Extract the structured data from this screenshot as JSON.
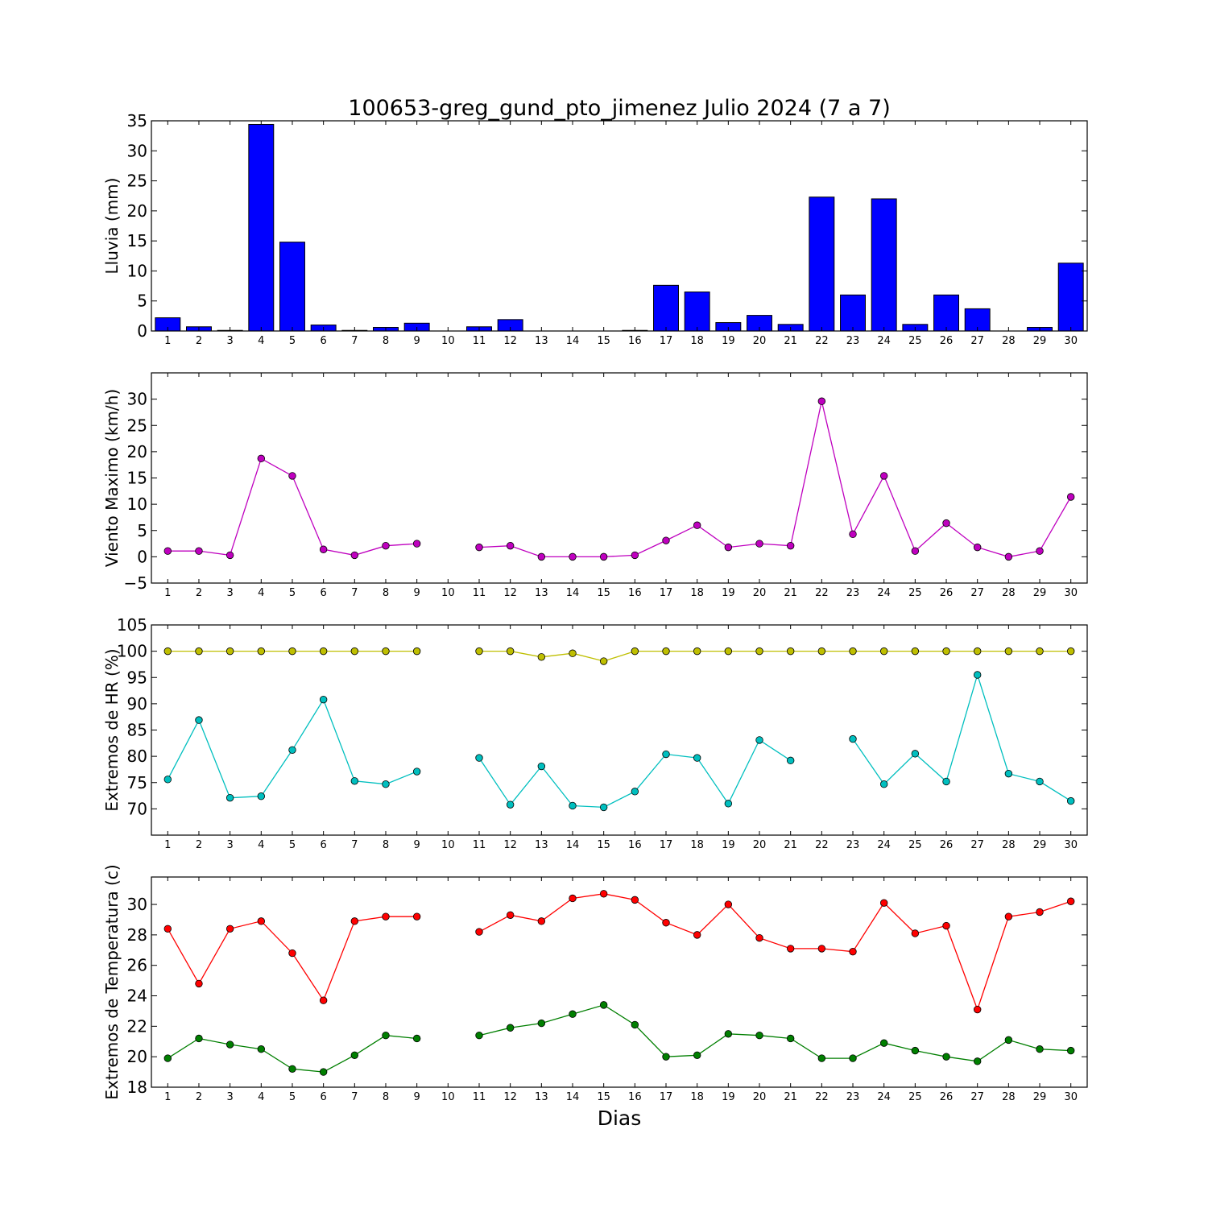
{
  "figure": {
    "title": "100653-greg_gund_pto_jimenez Julio 2024  (7 a 7)",
    "xlabel": "Dias"
  },
  "chart_data": [
    {
      "type": "bar",
      "ylabel": "Lluvia (mm)",
      "ylim": [
        0,
        35
      ],
      "yticks": [
        0,
        5,
        10,
        15,
        20,
        25,
        30,
        35
      ],
      "categories": [
        "1",
        "2",
        "3",
        "4",
        "5",
        "6",
        "7",
        "8",
        "9",
        "10",
        "11",
        "12",
        "13",
        "14",
        "15",
        "16",
        "17",
        "18",
        "19",
        "20",
        "21",
        "22",
        "23",
        "24",
        "25",
        "26",
        "27",
        "28",
        "29",
        "30"
      ],
      "series": [
        {
          "color": "#0000ff",
          "values": [
            2.2,
            0.7,
            0.1,
            34.4,
            14.8,
            1.0,
            0.1,
            0.6,
            1.3,
            null,
            0.7,
            1.9,
            0.0,
            0.0,
            0.0,
            0.1,
            7.6,
            6.5,
            1.4,
            2.6,
            1.1,
            22.3,
            6.0,
            22.0,
            1.1,
            6.0,
            3.7,
            0.0,
            0.6,
            11.3
          ]
        }
      ]
    },
    {
      "type": "line",
      "ylabel": "Viento Maximo (km/h)",
      "ylim": [
        -5,
        35
      ],
      "yticks": [
        -5,
        0,
        5,
        10,
        15,
        20,
        25,
        30
      ],
      "categories": [
        "1",
        "2",
        "3",
        "4",
        "5",
        "6",
        "7",
        "8",
        "9",
        "10",
        "11",
        "12",
        "13",
        "14",
        "15",
        "16",
        "17",
        "18",
        "19",
        "20",
        "21",
        "22",
        "23",
        "24",
        "25",
        "26",
        "27",
        "28",
        "29",
        "30"
      ],
      "series": [
        {
          "color": "#bf00bf",
          "values": [
            1.1,
            1.1,
            0.3,
            18.7,
            15.4,
            1.4,
            0.3,
            2.1,
            2.5,
            null,
            1.8,
            2.1,
            0.0,
            0.0,
            0.0,
            0.3,
            3.1,
            6.0,
            1.8,
            2.5,
            2.1,
            29.6,
            4.3,
            15.4,
            1.1,
            6.4,
            1.8,
            0.0,
            1.1,
            11.4
          ]
        }
      ]
    },
    {
      "type": "line",
      "ylabel": "Extremos de HR (%)",
      "ylim": [
        65,
        105
      ],
      "yticks": [
        70,
        75,
        80,
        85,
        90,
        95,
        100,
        105
      ],
      "categories": [
        "1",
        "2",
        "3",
        "4",
        "5",
        "6",
        "7",
        "8",
        "9",
        "10",
        "11",
        "12",
        "13",
        "14",
        "15",
        "16",
        "17",
        "18",
        "19",
        "20",
        "21",
        "22",
        "23",
        "24",
        "25",
        "26",
        "27",
        "28",
        "29",
        "30"
      ],
      "series": [
        {
          "color": "#bfbf00",
          "values": [
            100,
            100,
            100,
            100,
            100,
            100,
            100,
            100,
            100,
            null,
            100,
            100,
            98.9,
            99.6,
            98.1,
            100,
            100,
            100,
            100,
            100,
            100,
            100,
            100,
            100,
            100,
            100,
            100,
            100,
            100,
            100
          ]
        },
        {
          "color": "#00bfbf",
          "values": [
            75.6,
            86.9,
            72.1,
            72.4,
            81.2,
            90.8,
            75.3,
            74.7,
            77.1,
            null,
            79.7,
            70.8,
            78.1,
            70.6,
            70.3,
            73.3,
            80.4,
            79.7,
            71.0,
            83.1,
            79.2,
            null,
            83.3,
            74.7,
            80.5,
            75.2,
            95.5,
            76.7,
            75.2,
            71.5
          ]
        }
      ]
    },
    {
      "type": "line",
      "ylabel": "Extremos de Temperatura (c)",
      "ylim": [
        18,
        31.8
      ],
      "yticks": [
        18,
        20,
        22,
        24,
        26,
        28,
        30
      ],
      "categories": [
        "1",
        "2",
        "3",
        "4",
        "5",
        "6",
        "7",
        "8",
        "9",
        "10",
        "11",
        "12",
        "13",
        "14",
        "15",
        "16",
        "17",
        "18",
        "19",
        "20",
        "21",
        "22",
        "23",
        "24",
        "25",
        "26",
        "27",
        "28",
        "29",
        "30"
      ],
      "series": [
        {
          "color": "#ff0000",
          "values": [
            28.4,
            24.8,
            28.4,
            28.9,
            26.8,
            23.7,
            28.9,
            29.2,
            29.2,
            null,
            28.2,
            29.3,
            28.9,
            30.4,
            30.7,
            30.3,
            28.8,
            28.0,
            30.0,
            27.8,
            27.1,
            27.1,
            26.9,
            30.1,
            28.1,
            28.6,
            23.1,
            29.2,
            29.5,
            30.2
          ]
        },
        {
          "color": "#007f00",
          "values": [
            19.9,
            21.2,
            20.8,
            20.5,
            19.2,
            19.0,
            20.1,
            21.4,
            21.2,
            null,
            21.4,
            21.9,
            22.2,
            22.8,
            23.4,
            22.1,
            20.0,
            20.1,
            21.5,
            21.4,
            21.2,
            19.9,
            19.9,
            20.9,
            20.4,
            20.0,
            19.7,
            21.1,
            20.5,
            20.4
          ]
        }
      ]
    }
  ]
}
